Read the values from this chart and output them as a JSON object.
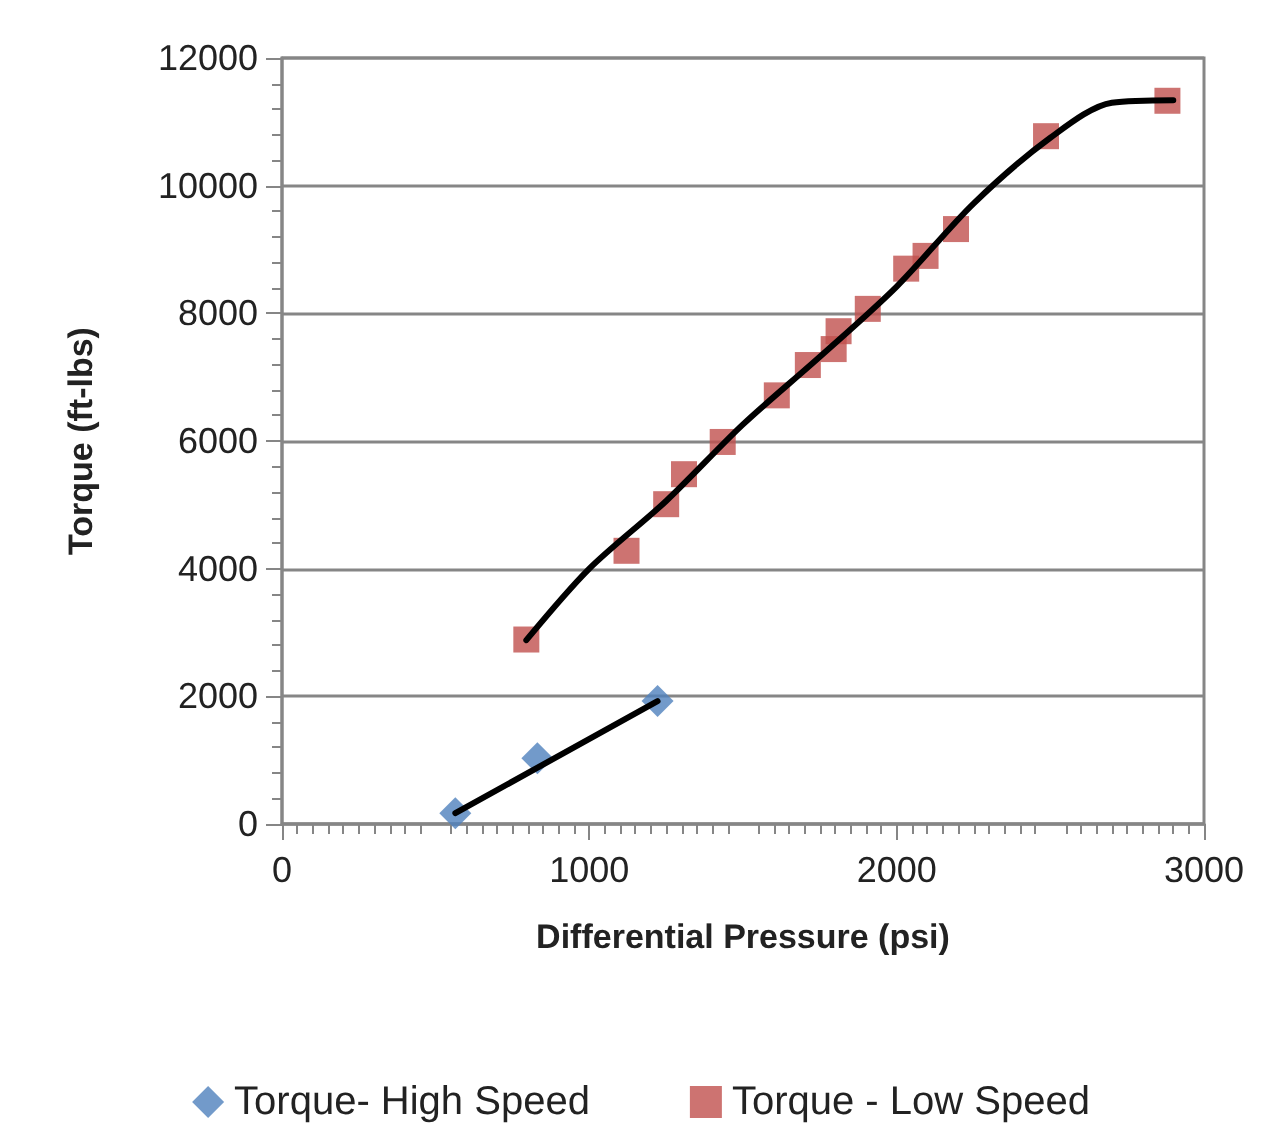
{
  "chart_data": {
    "type": "scatter",
    "xlabel": "Differential Pressure (psi)",
    "ylabel": "Torque (ft-lbs)",
    "xlim": [
      0,
      3000
    ],
    "xticks": [
      0,
      1000,
      2000,
      3000
    ],
    "ylim": [
      0,
      12000
    ],
    "yticks": [
      0,
      2000,
      4000,
      6000,
      8000,
      10000,
      12000
    ],
    "grid": "y",
    "legend": "bottom",
    "series": [
      {
        "name": "Torque- High Speed",
        "color": "#4f81bd",
        "marker": "diamond",
        "x": [
          564,
          831,
          1222
        ],
        "values": [
          170,
          1030,
          1925
        ]
      },
      {
        "name": "Torque - Low Speed",
        "color": "#c0504d",
        "marker": "square",
        "x": [
          795,
          1121,
          1250,
          1308,
          1434,
          1610,
          1711,
          1795,
          1811,
          1906,
          2031,
          2094,
          2193,
          2486,
          2881
        ],
        "values": [
          2890,
          4280,
          5010,
          5480,
          5985,
          6715,
          7190,
          7440,
          7720,
          8070,
          8700,
          8900,
          9320,
          10775,
          11330
        ]
      },
      {
        "type": "line",
        "color": "#000000",
        "marker": "none",
        "line_style": "solid",
        "x": [
          564,
          1222
        ],
        "values": [
          170,
          1925
        ]
      },
      {
        "type": "line",
        "color": "#000000",
        "marker": "none",
        "line_style": "solid",
        "x": [
          795,
          1000,
          1250,
          1500,
          1750,
          2000,
          2250,
          2500,
          2700,
          2900
        ],
        "values": [
          2880,
          4000,
          5060,
          6260,
          7320,
          8420,
          9720,
          10750,
          11300,
          11340
        ]
      }
    ]
  }
}
